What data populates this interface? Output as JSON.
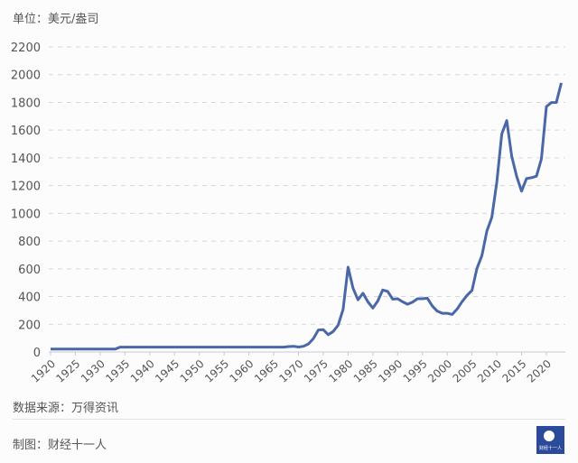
{
  "unit_label": "单位：美元/盎司",
  "source": "数据来源：万得资讯",
  "credit": "制图：财经十一人",
  "logo_text": "财经十一人",
  "chart_data": {
    "type": "line",
    "title": "",
    "xlabel": "",
    "ylabel": "",
    "line_color": "#4a67a8",
    "grid": true,
    "xlim": [
      1920,
      2023
    ],
    "ylim": [
      0,
      2200
    ],
    "yticks": [
      0,
      200,
      400,
      600,
      800,
      1000,
      1200,
      1400,
      1600,
      1800,
      2000,
      2200
    ],
    "xticks": [
      1920,
      1925,
      1930,
      1935,
      1940,
      1945,
      1950,
      1955,
      1960,
      1965,
      1970,
      1975,
      1980,
      1985,
      1990,
      1995,
      2000,
      2005,
      2010,
      2015,
      2020
    ],
    "x": [
      1920,
      1933,
      1934,
      1967,
      1968,
      1969,
      1970,
      1971,
      1972,
      1973,
      1974,
      1975,
      1976,
      1977,
      1978,
      1979,
      1980,
      1981,
      1982,
      1983,
      1984,
      1985,
      1986,
      1987,
      1988,
      1989,
      1990,
      1991,
      1992,
      1993,
      1994,
      1995,
      1996,
      1997,
      1998,
      1999,
      2000,
      2001,
      2002,
      2003,
      2004,
      2005,
      2006,
      2007,
      2008,
      2009,
      2010,
      2011,
      2012,
      2013,
      2014,
      2015,
      2016,
      2017,
      2018,
      2019,
      2020,
      2021,
      2022,
      2023
    ],
    "values": [
      21,
      21,
      35,
      35,
      39,
      41,
      36,
      41,
      58,
      97,
      159,
      161,
      125,
      148,
      193,
      307,
      612,
      460,
      376,
      424,
      361,
      317,
      368,
      447,
      437,
      381,
      384,
      362,
      344,
      360,
      384,
      384,
      388,
      331,
      294,
      279,
      279,
      271,
      310,
      363,
      409,
      444,
      603,
      695,
      872,
      972,
      1225,
      1572,
      1669,
      1411,
      1266,
      1160,
      1251,
      1257,
      1268,
      1393,
      1770,
      1799,
      1800,
      1940
    ]
  }
}
